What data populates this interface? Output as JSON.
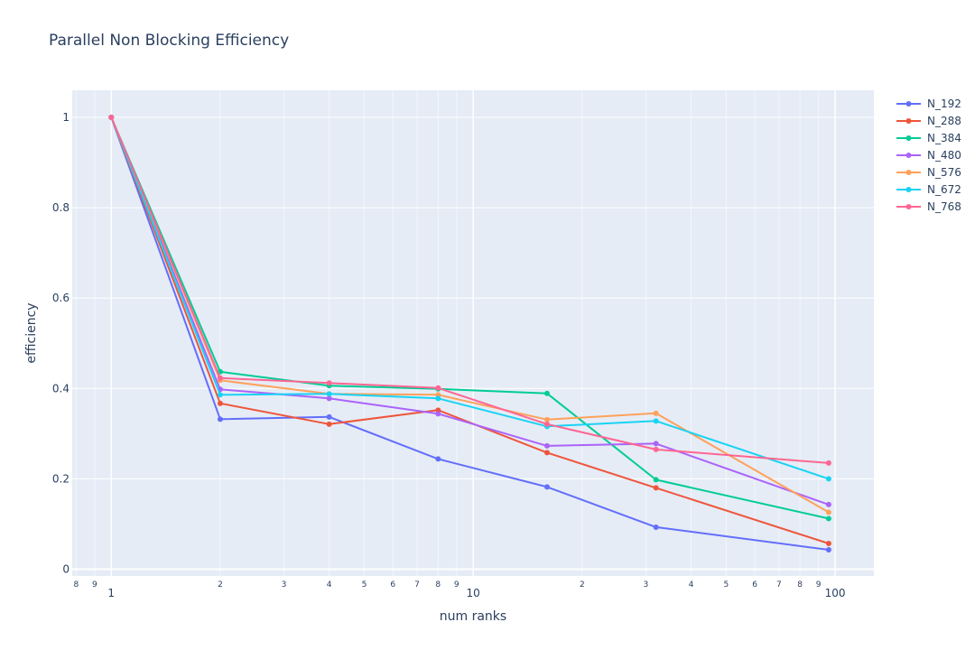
{
  "chart_data": {
    "type": "line",
    "title": "Parallel Non Blocking Efficiency",
    "xlabel": "num ranks",
    "ylabel": "efficiency",
    "x_scale": "log",
    "xlim": [
      0.78,
      128
    ],
    "ylim": [
      -0.015,
      1.06
    ],
    "x": [
      1,
      2,
      4,
      8,
      16,
      32,
      96
    ],
    "y_ticks": [
      0,
      0.2,
      0.4,
      0.6,
      0.8,
      1
    ],
    "y_tick_labels": [
      "0",
      "0.2",
      "0.4",
      "0.6",
      "0.8",
      "1"
    ],
    "x_major_ticks": [
      {
        "value": 1,
        "label": "1"
      },
      {
        "value": 10,
        "label": "10"
      },
      {
        "value": 100,
        "label": "100"
      }
    ],
    "x_minor_ticks": [
      {
        "value": 0.8,
        "label": "8"
      },
      {
        "value": 0.9,
        "label": "9"
      },
      {
        "value": 2,
        "label": "2"
      },
      {
        "value": 3,
        "label": "3"
      },
      {
        "value": 4,
        "label": "4"
      },
      {
        "value": 5,
        "label": "5"
      },
      {
        "value": 6,
        "label": "6"
      },
      {
        "value": 7,
        "label": "7"
      },
      {
        "value": 8,
        "label": "8"
      },
      {
        "value": 9,
        "label": "9"
      },
      {
        "value": 20,
        "label": "2"
      },
      {
        "value": 30,
        "label": "3"
      },
      {
        "value": 40,
        "label": "4"
      },
      {
        "value": 50,
        "label": "5"
      },
      {
        "value": 60,
        "label": "6"
      },
      {
        "value": 70,
        "label": "7"
      },
      {
        "value": 80,
        "label": "8"
      },
      {
        "value": 90,
        "label": "9"
      }
    ],
    "grid": true,
    "legend_position": "top-right",
    "series": [
      {
        "name": "N_192",
        "color": "#636efa",
        "values": [
          1,
          0.332,
          0.337,
          0.244,
          0.182,
          0.093,
          0.043
        ]
      },
      {
        "name": "N_288",
        "color": "#EF553B",
        "values": [
          1,
          0.367,
          0.321,
          0.352,
          0.258,
          0.18,
          0.057
        ]
      },
      {
        "name": "N_384",
        "color": "#00cc96",
        "values": [
          1,
          0.437,
          0.406,
          0.399,
          0.389,
          0.198,
          0.112
        ]
      },
      {
        "name": "N_480",
        "color": "#ab63fa",
        "values": [
          1,
          0.398,
          0.378,
          0.344,
          0.273,
          0.278,
          0.143
        ]
      },
      {
        "name": "N_576",
        "color": "#FFA15A",
        "values": [
          1,
          0.418,
          0.388,
          0.386,
          0.331,
          0.345,
          0.126
        ]
      },
      {
        "name": "N_672",
        "color": "#19d3f3",
        "values": [
          1,
          0.386,
          0.388,
          0.378,
          0.316,
          0.328,
          0.2
        ]
      },
      {
        "name": "N_768",
        "color": "#FF6692",
        "values": [
          1,
          0.423,
          0.412,
          0.401,
          0.321,
          0.265,
          0.235
        ]
      }
    ]
  }
}
